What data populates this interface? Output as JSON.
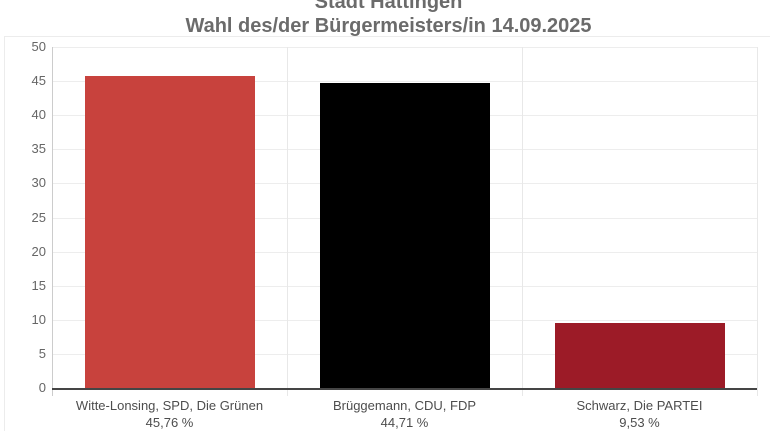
{
  "title": {
    "line1": "Stadt Hattingen",
    "line2": "Wahl des/der Bürgermeisters/in 14.09.2025"
  },
  "chart_data": {
    "type": "bar",
    "title": "Stadt Hattingen",
    "subtitle": "Wahl des/der Bürgermeisters/in 14.09.2025",
    "categories": [
      "Witte-Lonsing, SPD, Die Grünen",
      "Brüggemann, CDU, FDP",
      "Schwarz, Die PARTEI"
    ],
    "values": [
      45.76,
      44.71,
      9.53
    ],
    "value_labels": [
      "45,76 %",
      "44,71 %",
      "9,53 %"
    ],
    "bar_colors": [
      "#c8423d",
      "#000000",
      "#9c1b27"
    ],
    "ylim": [
      0,
      50
    ],
    "yticks": [
      0,
      5,
      10,
      15,
      20,
      25,
      30,
      35,
      40,
      45,
      50
    ],
    "xlabel": "",
    "ylabel": "",
    "grid": true,
    "legend": false
  },
  "colors": {
    "background": "#ffffff",
    "title_text": "#6b6b6b",
    "y_label_text": "#666666",
    "category_label_text": "#4d4d4d",
    "gridline": "#ededed",
    "separator": "#e8e8e8",
    "y_axis_line": "#cccccc",
    "baseline": "#454545",
    "frame_border": "#ececec"
  }
}
